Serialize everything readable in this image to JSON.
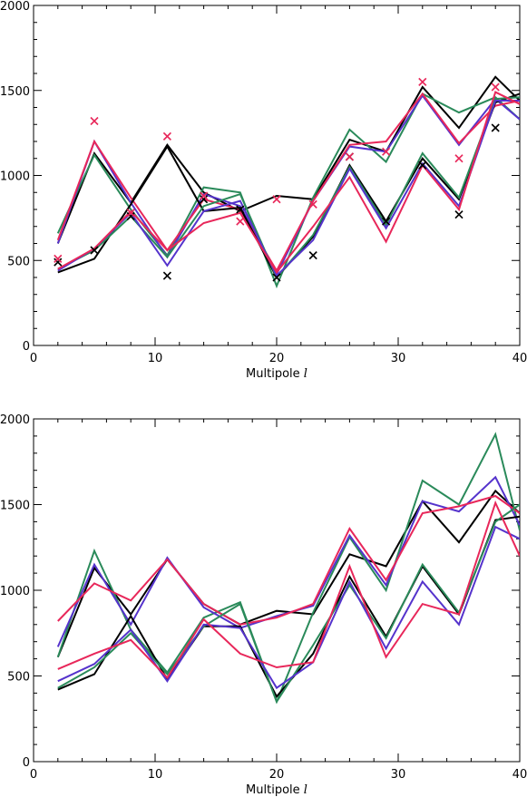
{
  "colors": {
    "black": "#000000",
    "green": "#2a8a5a",
    "blue": "#5533cc",
    "red": "#e8275a"
  },
  "chart_data": [
    {
      "type": "line",
      "xlabel": "Multipole",
      "xlabel_symbol": "l",
      "ylabel": "",
      "xlim": [
        0,
        40
      ],
      "ylim": [
        0,
        2000
      ],
      "x_ticks": [
        0,
        10,
        20,
        30,
        40
      ],
      "y_ticks": [
        0,
        500,
        1000,
        1500,
        2000
      ],
      "x": [
        2,
        5,
        8,
        11,
        14,
        17,
        20,
        23,
        26,
        29,
        32,
        35,
        38,
        40
      ],
      "series": [
        {
          "color": "black",
          "values": [
            600,
            1130,
            840,
            1180,
            900,
            790,
            880,
            860,
            1210,
            1140,
            1520,
            1280,
            1580,
            1440
          ]
        },
        {
          "color": "green",
          "values": [
            660,
            1120,
            800,
            530,
            930,
            900,
            350,
            870,
            1270,
            1080,
            1480,
            1370,
            1460,
            1330
          ]
        },
        {
          "color": "blue",
          "values": [
            600,
            1200,
            840,
            520,
            890,
            820,
            420,
            850,
            1170,
            1140,
            1470,
            1180,
            1450,
            1330
          ]
        },
        {
          "color": "red",
          "values": [
            620,
            1200,
            870,
            560,
            860,
            800,
            440,
            850,
            1180,
            1200,
            1480,
            1190,
            1410,
            1440
          ]
        },
        {
          "color": "black",
          "values": [
            430,
            510,
            830,
            1170,
            790,
            810,
            400,
            640,
            1060,
            730,
            1100,
            860,
            1430,
            1480
          ]
        },
        {
          "color": "green",
          "values": [
            450,
            560,
            760,
            520,
            820,
            890,
            400,
            650,
            1050,
            710,
            1130,
            870,
            1450,
            1460
          ]
        },
        {
          "color": "blue",
          "values": [
            440,
            570,
            780,
            470,
            790,
            850,
            410,
            620,
            1040,
            690,
            1070,
            820,
            1440,
            1440
          ]
        },
        {
          "color": "red",
          "values": [
            450,
            570,
            790,
            560,
            720,
            780,
            430,
            700,
            990,
            610,
            1060,
            800,
            1490,
            1420
          ]
        }
      ],
      "markers": [
        {
          "color": "black",
          "points": [
            [
              2,
              490
            ],
            [
              5,
              560
            ],
            [
              8,
              760
            ],
            [
              11,
              410
            ],
            [
              14,
              860
            ],
            [
              17,
              800
            ],
            [
              20,
              400
            ],
            [
              23,
              530
            ],
            [
              26,
              1110
            ],
            [
              29,
              730
            ],
            [
              32,
              1060
            ],
            [
              35,
              770
            ],
            [
              38,
              1280
            ]
          ]
        },
        {
          "color": "red",
          "points": [
            [
              2,
              510
            ],
            [
              5,
              1320
            ],
            [
              8,
              780
            ],
            [
              11,
              1230
            ],
            [
              14,
              880
            ],
            [
              17,
              730
            ],
            [
              20,
              860
            ],
            [
              23,
              830
            ],
            [
              26,
              1110
            ],
            [
              29,
              1140
            ],
            [
              32,
              1550
            ],
            [
              35,
              1100
            ],
            [
              38,
              1520
            ]
          ]
        }
      ]
    },
    {
      "type": "line",
      "xlabel": "Multipole",
      "xlabel_symbol": "l",
      "ylabel": "",
      "xlim": [
        0,
        40
      ],
      "ylim": [
        0,
        2000
      ],
      "x_ticks": [
        0,
        10,
        20,
        30,
        40
      ],
      "y_ticks": [
        0,
        500,
        1000,
        1500,
        2000
      ],
      "x": [
        2,
        5,
        8,
        11,
        14,
        17,
        20,
        23,
        26,
        29,
        32,
        35,
        38,
        40
      ],
      "series": [
        {
          "color": "black",
          "values": [
            610,
            1130,
            860,
            1180,
            920,
            800,
            880,
            860,
            1210,
            1140,
            1520,
            1280,
            1580,
            1450
          ]
        },
        {
          "color": "green",
          "values": [
            610,
            1230,
            770,
            520,
            840,
            930,
            350,
            870,
            1310,
            1000,
            1640,
            1500,
            1910,
            1350
          ]
        },
        {
          "color": "blue",
          "values": [
            670,
            1150,
            800,
            1190,
            900,
            780,
            850,
            910,
            1320,
            1030,
            1520,
            1460,
            1660,
            1380
          ]
        },
        {
          "color": "red",
          "values": [
            820,
            1040,
            940,
            1180,
            920,
            800,
            840,
            920,
            1360,
            1060,
            1450,
            1490,
            1550,
            1450
          ]
        },
        {
          "color": "black",
          "values": [
            420,
            510,
            850,
            480,
            790,
            790,
            380,
            630,
            1080,
            730,
            1140,
            860,
            1410,
            1430
          ]
        },
        {
          "color": "green",
          "values": [
            430,
            550,
            750,
            510,
            790,
            920,
            350,
            680,
            1030,
            720,
            1150,
            870,
            1400,
            1500
          ]
        },
        {
          "color": "blue",
          "values": [
            470,
            570,
            770,
            470,
            800,
            780,
            430,
            580,
            1050,
            660,
            1050,
            800,
            1370,
            1300
          ]
        },
        {
          "color": "red",
          "values": [
            540,
            630,
            710,
            490,
            830,
            630,
            550,
            580,
            1140,
            610,
            920,
            860,
            1510,
            1200
          ]
        }
      ],
      "markers": []
    }
  ]
}
